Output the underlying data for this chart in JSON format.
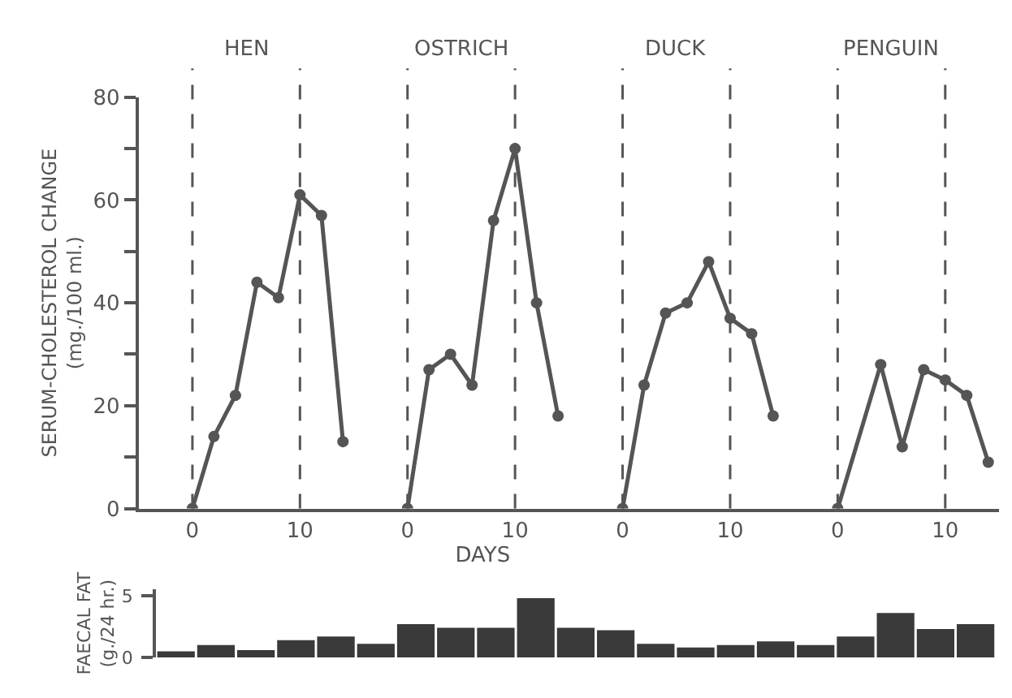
{
  "chart_data": [
    {
      "type": "line",
      "title": "HEN",
      "ylabel": "SERUM-CHOLESTEROL CHANGE\n(mg./100 ml.)",
      "x": [
        0,
        2,
        4,
        6,
        8,
        10,
        12,
        14
      ],
      "series": [
        {
          "color": "#555555",
          "values": [
            0,
            14,
            22,
            44,
            41,
            61,
            57,
            13
          ]
        }
      ],
      "xlim": [
        -5,
        17
      ],
      "xticks": [
        0,
        10
      ],
      "ylim": [
        0,
        80
      ],
      "yticks": [
        0,
        {
          "value": 10,
          "label": null
        },
        20,
        {
          "value": 30,
          "label": null
        },
        40,
        {
          "value": 50,
          "label": null
        },
        60,
        {
          "value": 70,
          "label": null
        },
        80
      ],
      "ref_lines": [
        {
          "axis": "x",
          "value": 0,
          "line_style": "dashed"
        },
        {
          "axis": "x",
          "value": 10,
          "line_style": "dashed"
        }
      ],
      "marker": "circle"
    },
    {
      "type": "line",
      "title": "OSTRICH",
      "xlabel": "DAYS",
      "x": [
        0,
        2,
        4,
        6,
        8,
        10,
        12,
        14
      ],
      "series": [
        {
          "color": "#555555",
          "values": [
            0,
            27,
            30,
            24,
            56,
            70,
            40,
            18
          ]
        }
      ],
      "xlim": [
        -3,
        17
      ],
      "xticks": [
        0,
        10
      ],
      "ylim": [
        0,
        80
      ],
      "tick_labels": "x",
      "ref_lines": [
        {
          "axis": "x",
          "value": 0,
          "line_style": "dashed"
        },
        {
          "axis": "x",
          "value": 10,
          "line_style": "dashed"
        }
      ],
      "marker": "circle"
    },
    {
      "type": "line",
      "title": "DUCK",
      "x": [
        0,
        2,
        4,
        6,
        8,
        10,
        12,
        14
      ],
      "series": [
        {
          "color": "#555555",
          "values": [
            0,
            24,
            38,
            40,
            48,
            37,
            34,
            18
          ]
        }
      ],
      "xlim": [
        -3,
        17
      ],
      "xticks": [
        0,
        10
      ],
      "ylim": [
        0,
        80
      ],
      "tick_labels": "x",
      "ref_lines": [
        {
          "axis": "x",
          "value": 0,
          "line_style": "dashed"
        },
        {
          "axis": "x",
          "value": 10,
          "line_style": "dashed"
        }
      ],
      "marker": "circle"
    },
    {
      "type": "line",
      "title": "PENGUIN",
      "x": [
        0,
        4,
        6,
        8,
        10,
        12,
        14
      ],
      "series": [
        {
          "color": "#555555",
          "values": [
            0,
            28,
            12,
            27,
            25,
            22,
            9
          ]
        }
      ],
      "xlim": [
        -3,
        15
      ],
      "xticks": [
        0,
        10
      ],
      "ylim": [
        0,
        80
      ],
      "tick_labels": "x",
      "ref_lines": [
        {
          "axis": "x",
          "value": 0,
          "line_style": "dashed"
        },
        {
          "axis": "x",
          "value": 10,
          "line_style": "dashed"
        }
      ],
      "marker": "circle"
    },
    {
      "type": "bar",
      "ylabel": "FAECAL FAT\n(g./24 hr.)",
      "categories": [
        null,
        null,
        null,
        null,
        null,
        null,
        null,
        null,
        null,
        null,
        null,
        null,
        null,
        null,
        null,
        null,
        null,
        null,
        null,
        null,
        null
      ],
      "series": [
        {
          "color": "#3a3a3a",
          "values": [
            0.5,
            1.0,
            0.6,
            1.4,
            1.7,
            1.1,
            2.7,
            2.4,
            2.4,
            4.8,
            2.4,
            2.2,
            1.1,
            0.8,
            1.0,
            1.3,
            1.0,
            1.7,
            3.6,
            2.3,
            2.7
          ]
        }
      ],
      "ylim": [
        0,
        5.5
      ],
      "yticks": [
        0,
        5
      ],
      "tick_labels": "y"
    }
  ]
}
